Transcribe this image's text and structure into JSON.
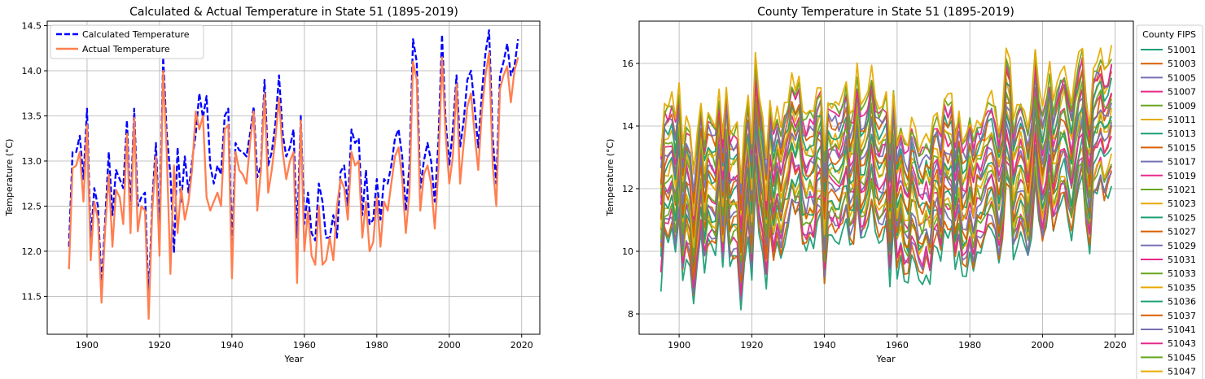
{
  "chart_data": [
    {
      "type": "line",
      "title": "Calculated & Actual Temperature in State 51 (1895-2019)",
      "xlabel": "Year",
      "ylabel": "Temperature (°C)",
      "xlim": [
        1889,
        2025
      ],
      "ylim": [
        11.08,
        14.55
      ],
      "xticks": [
        1900,
        1920,
        1940,
        1960,
        1980,
        2000,
        2020
      ],
      "yticks": [
        11.5,
        12.0,
        12.5,
        13.0,
        13.5,
        14.0,
        14.5
      ],
      "ytick_labels": [
        "11.5",
        "12.0",
        "12.5",
        "13.0",
        "13.5",
        "14.0",
        "14.5"
      ],
      "grid": true,
      "legend_position": "upper-left",
      "series": [
        {
          "name": "Calculated Temperature",
          "color": "#0000ff",
          "style": "dashed",
          "x_start": 1895,
          "values": [
            12.05,
            13.1,
            13.1,
            13.28,
            12.8,
            13.58,
            12.1,
            12.7,
            12.5,
            11.62,
            12.35,
            13.1,
            12.4,
            12.9,
            12.8,
            12.7,
            13.45,
            12.45,
            13.58,
            12.5,
            12.6,
            12.65,
            11.45,
            12.55,
            13.2,
            12.2,
            14.15,
            13.3,
            12.85,
            11.98,
            13.15,
            12.55,
            13.05,
            12.65,
            13.0,
            13.3,
            13.75,
            13.48,
            13.72,
            12.95,
            12.75,
            12.95,
            12.85,
            13.5,
            13.58,
            11.98,
            13.2,
            13.12,
            13.1,
            13.05,
            13.3,
            13.6,
            12.82,
            12.95,
            13.9,
            12.95,
            13.1,
            13.42,
            13.95,
            13.3,
            13.05,
            13.15,
            13.35,
            12.15,
            13.5,
            12.3,
            12.65,
            12.2,
            12.12,
            12.75,
            12.55,
            12.15,
            12.15,
            12.4,
            12.15,
            12.88,
            12.95,
            12.5,
            13.35,
            13.2,
            13.25,
            12.4,
            12.9,
            12.3,
            12.35,
            12.8,
            12.35,
            12.8,
            12.75,
            12.95,
            13.25,
            13.35,
            13.05,
            12.45,
            12.95,
            14.35,
            14.1,
            12.7,
            13.0,
            13.2,
            13.0,
            12.55,
            13.2,
            14.4,
            13.45,
            12.95,
            13.35,
            13.95,
            13.15,
            13.45,
            13.9,
            14.0,
            13.6,
            13.15,
            13.75,
            14.2,
            14.45,
            13.25,
            12.75,
            13.95,
            14.1,
            14.3,
            13.95,
            14.05,
            14.35
          ]
        },
        {
          "name": "Actual Temperature",
          "color": "#ff7f50",
          "style": "solid",
          "x_start": 1895,
          "values": [
            11.8,
            12.92,
            12.95,
            13.1,
            12.55,
            13.4,
            11.9,
            12.55,
            12.35,
            11.43,
            12.25,
            12.85,
            12.05,
            12.68,
            12.6,
            12.3,
            13.3,
            12.2,
            13.48,
            12.22,
            12.5,
            12.45,
            11.25,
            12.45,
            13.05,
            11.95,
            14.0,
            13.1,
            11.75,
            12.95,
            12.2,
            12.7,
            12.35,
            12.55,
            12.9,
            13.55,
            13.35,
            13.5,
            12.6,
            12.45,
            12.55,
            12.65,
            12.5,
            13.35,
            13.4,
            11.7,
            13.1,
            12.9,
            12.85,
            12.75,
            13.2,
            13.55,
            12.45,
            12.9,
            13.75,
            12.65,
            12.9,
            13.25,
            13.7,
            13.1,
            12.8,
            13.0,
            13.1,
            11.65,
            13.45,
            12.0,
            12.45,
            11.95,
            11.85,
            12.5,
            11.85,
            11.9,
            12.15,
            11.9,
            12.5,
            12.8,
            12.7,
            12.35,
            13.1,
            12.95,
            13.0,
            12.15,
            12.55,
            12.0,
            12.1,
            12.6,
            12.05,
            12.55,
            12.45,
            12.75,
            13.05,
            13.15,
            12.8,
            12.2,
            12.65,
            14.1,
            13.9,
            12.45,
            12.85,
            12.95,
            12.75,
            12.25,
            12.9,
            14.15,
            13.3,
            12.75,
            13.05,
            13.85,
            12.75,
            13.2,
            13.6,
            13.75,
            13.3,
            12.9,
            13.55,
            13.95,
            14.2,
            12.95,
            12.5,
            13.8,
            13.95,
            14.05,
            13.65,
            14.0,
            14.15
          ]
        }
      ]
    },
    {
      "type": "line",
      "title": "County Temperature in State 51 (1895-2019)",
      "xlabel": "Year",
      "ylabel": "Temperature (°C)",
      "xlim": [
        1889,
        2025
      ],
      "ylim": [
        7.35,
        17.35
      ],
      "xticks": [
        1900,
        1920,
        1940,
        1960,
        1980,
        2000,
        2020
      ],
      "yticks": [
        8,
        10,
        12,
        14,
        16
      ],
      "grid": true,
      "legend_title": "County FIPS",
      "legend_position": "outside-right",
      "year_start": 1895,
      "year_end": 2019,
      "series_range": [
        8.6,
        16.2
      ],
      "series": [
        {
          "name": "51001",
          "color": "#1b9e77"
        },
        {
          "name": "51003",
          "color": "#d95f02"
        },
        {
          "name": "51005",
          "color": "#7570b3"
        },
        {
          "name": "51007",
          "color": "#e7298a"
        },
        {
          "name": "51009",
          "color": "#66a61e"
        },
        {
          "name": "51011",
          "color": "#e6ab02"
        },
        {
          "name": "51013",
          "color": "#1b9e77"
        },
        {
          "name": "51015",
          "color": "#d95f02"
        },
        {
          "name": "51017",
          "color": "#7570b3"
        },
        {
          "name": "51019",
          "color": "#e7298a"
        },
        {
          "name": "51021",
          "color": "#66a61e"
        },
        {
          "name": "51023",
          "color": "#e6ab02"
        },
        {
          "name": "51025",
          "color": "#1b9e77"
        },
        {
          "name": "51027",
          "color": "#d95f02"
        },
        {
          "name": "51029",
          "color": "#7570b3"
        },
        {
          "name": "51031",
          "color": "#e7298a"
        },
        {
          "name": "51033",
          "color": "#66a61e"
        },
        {
          "name": "51035",
          "color": "#e6ab02"
        },
        {
          "name": "51036",
          "color": "#1b9e77"
        },
        {
          "name": "51037",
          "color": "#d95f02"
        },
        {
          "name": "51041",
          "color": "#7570b3"
        },
        {
          "name": "51043",
          "color": "#e7298a"
        },
        {
          "name": "51045",
          "color": "#66a61e"
        },
        {
          "name": "51047",
          "color": "#e6ab02"
        }
      ]
    }
  ]
}
